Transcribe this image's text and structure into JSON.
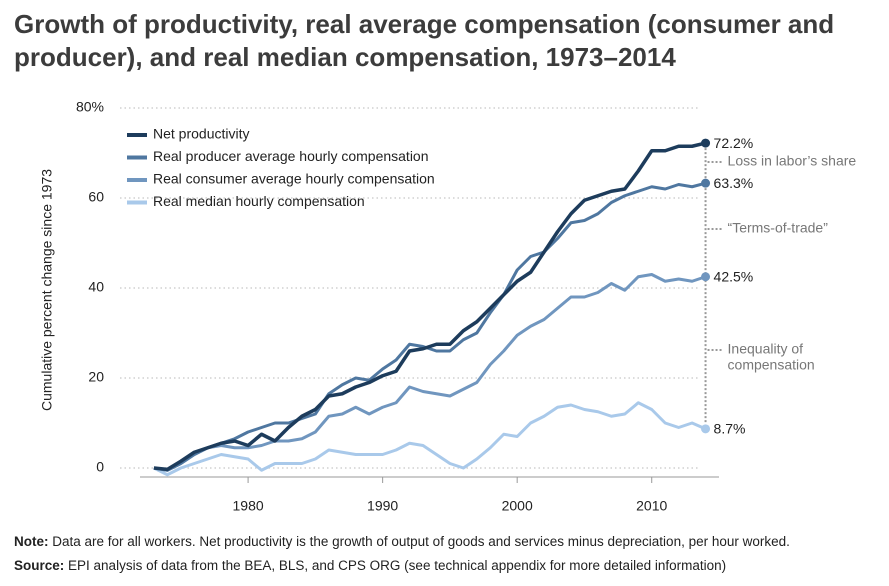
{
  "chart_data": {
    "type": "line",
    "title": "Growth of productivity, real average compensation (consumer and producer), and real median compensation, 1973–2014",
    "y_label": "Cumulative percent change since 1973",
    "x": [
      1973,
      1974,
      1975,
      1976,
      1977,
      1978,
      1979,
      1980,
      1981,
      1982,
      1983,
      1984,
      1985,
      1986,
      1987,
      1988,
      1989,
      1990,
      1991,
      1992,
      1993,
      1994,
      1995,
      1996,
      1997,
      1998,
      1999,
      2000,
      2001,
      2002,
      2003,
      2004,
      2005,
      2006,
      2007,
      2008,
      2009,
      2010,
      2011,
      2012,
      2013,
      2014
    ],
    "xlim": [
      1971,
      2015
    ],
    "xticks": [
      1980,
      1990,
      2000,
      2010
    ],
    "ylim": [
      -2,
      80
    ],
    "yticks": [
      0,
      20,
      40,
      60,
      {
        "value": 80,
        "label": "80%"
      }
    ],
    "grid": true,
    "series": [
      {
        "name": "Net productivity",
        "color": "#1d3c5c",
        "end_label": "72.2%",
        "values": [
          0,
          -0.3,
          1.5,
          3.5,
          4.5,
          5.5,
          6,
          5,
          7.5,
          6,
          9,
          11.5,
          13,
          16,
          16.5,
          18,
          19,
          20.5,
          21.5,
          26,
          26.5,
          27.5,
          27.5,
          30.5,
          32.5,
          35.5,
          38.5,
          41.5,
          43.5,
          48,
          52.5,
          56.5,
          59.5,
          60.5,
          61.5,
          62,
          66,
          70.5,
          70.5,
          71.5,
          71.5,
          72.2
        ]
      },
      {
        "name": "Real producer average hourly compensation",
        "color": "#4f77a0",
        "end_label": "63.3%",
        "values": [
          0,
          -0.5,
          1,
          3,
          4.5,
          5.5,
          6.5,
          8,
          9,
          10,
          10,
          11,
          12,
          16.5,
          18.5,
          20,
          19.5,
          22,
          24,
          27.5,
          27,
          26,
          26,
          28.5,
          30,
          34.5,
          38.5,
          44,
          47,
          48,
          51,
          54.5,
          55,
          56.5,
          59,
          60.5,
          61.5,
          62.5,
          62,
          63,
          62.5,
          63.3
        ]
      },
      {
        "name": "Real consumer average hourly compensation",
        "color": "#7096bf",
        "end_label": "42.5%",
        "values": [
          0,
          -0.5,
          1,
          3,
          4.5,
          5,
          4.5,
          4.5,
          5,
          6,
          6,
          6.5,
          8,
          11.5,
          12,
          13.5,
          12,
          13.5,
          14.5,
          18,
          17,
          16.5,
          16,
          17.5,
          19,
          23,
          26,
          29.5,
          31.5,
          33,
          35.5,
          38,
          38,
          39,
          41,
          39.5,
          42.5,
          43,
          41.5,
          42,
          41.5,
          42.5
        ]
      },
      {
        "name": "Real median hourly compensation",
        "color": "#a9c9ea",
        "end_label": "8.7%",
        "values": [
          0,
          -1.5,
          0,
          1,
          2,
          3,
          2.5,
          2,
          -0.5,
          1,
          1,
          1,
          2,
          4,
          3.5,
          3,
          3,
          3,
          4,
          5.5,
          5,
          3,
          1,
          0,
          2,
          4.5,
          7.5,
          7,
          10,
          11.5,
          13.5,
          14,
          13,
          12.5,
          11.5,
          12,
          14.5,
          13,
          10,
          9,
          10,
          8.7
        ]
      }
    ],
    "annotations": [
      "Loss in labor’s share",
      "“Terms-of-trade”",
      "Inequality of",
      "compensation"
    ],
    "note": {
      "label": "Note:",
      "text": "Data are for all workers. Net productivity is the growth of output of goods and services minus depreciation, per hour worked."
    },
    "source": {
      "label": "Source:",
      "text": "EPI analysis of data from the BEA, BLS, and CPS ORG (see technical appendix for more detailed information)"
    }
  }
}
